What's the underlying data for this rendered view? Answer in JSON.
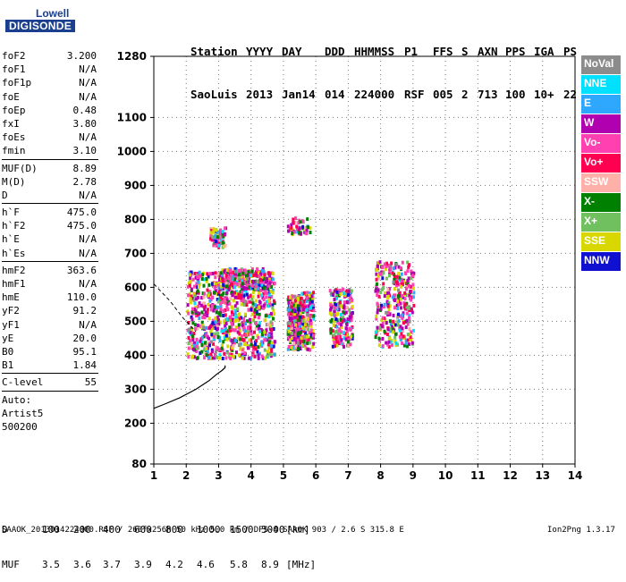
{
  "logo": {
    "line1": "Lowell",
    "line2": "DIGISONDE"
  },
  "header": {
    "row1": [
      "Station",
      "YYYY",
      "DAY",
      "DDD",
      "HHMMSS",
      "P1",
      "FFS",
      "S",
      "AXN",
      "PPS",
      "IGA",
      "PS"
    ],
    "row2": [
      "SaoLuis",
      "2013",
      "Jan14",
      "014",
      "224000",
      "RSF",
      "005",
      "2",
      "713",
      "100",
      "10+",
      "22"
    ]
  },
  "params": {
    "g1": [
      [
        "foF2",
        "3.200"
      ],
      [
        "foF1",
        "N/A"
      ],
      [
        "foF1p",
        "N/A"
      ],
      [
        "foE",
        "N/A"
      ],
      [
        "foEp",
        "0.48"
      ],
      [
        "fxI",
        "3.80"
      ],
      [
        "foEs",
        "N/A"
      ],
      [
        "fmin",
        "3.10"
      ]
    ],
    "g2": [
      [
        "MUF(D)",
        "8.89"
      ],
      [
        "M(D)",
        "2.78"
      ],
      [
        "D",
        "N/A"
      ]
    ],
    "g3": [
      [
        "h`F",
        "475.0"
      ],
      [
        "h`F2",
        "475.0"
      ],
      [
        "h`E",
        "N/A"
      ],
      [
        "h`Es",
        "N/A"
      ]
    ],
    "g4": [
      [
        "hmF2",
        "363.6"
      ],
      [
        "hmF1",
        "N/A"
      ],
      [
        "hmE",
        "110.0"
      ],
      [
        "yF2",
        "91.2"
      ],
      [
        "yF1",
        "N/A"
      ],
      [
        "yE",
        "20.0"
      ],
      [
        "B0",
        "95.1"
      ],
      [
        "B1",
        "1.84"
      ]
    ],
    "g5": [
      [
        "C-level",
        "55"
      ]
    ],
    "auto_label": "Auto:",
    "artist": "Artist5",
    "artist_ver": "500200"
  },
  "legend": [
    {
      "label": "NoVal",
      "color": "#8c8c8c"
    },
    {
      "label": "NNE",
      "color": "#00e0ff"
    },
    {
      "label": "E",
      "color": "#2ea8ff"
    },
    {
      "label": "W",
      "color": "#b000b0"
    },
    {
      "label": "Vo-",
      "color": "#ff40b0"
    },
    {
      "label": "Vo+",
      "color": "#ff0050"
    },
    {
      "label": "SSW",
      "color": "#ffb0a8"
    },
    {
      "label": "X-",
      "color": "#008000"
    },
    {
      "label": "X+",
      "color": "#70c060"
    },
    {
      "label": "SSE",
      "color": "#d8d800"
    },
    {
      "label": "NNW",
      "color": "#1010d0"
    }
  ],
  "chart_data": {
    "type": "scatter",
    "title": "",
    "xlabel": "",
    "ylabel": "",
    "xlim": [
      1,
      14
    ],
    "ylim": [
      80,
      1280
    ],
    "x_ticks": [
      1,
      2,
      3,
      4,
      5,
      6,
      7,
      8,
      9,
      10,
      11,
      12,
      13,
      14
    ],
    "y_ticks": [
      80,
      200,
      300,
      400,
      500,
      600,
      700,
      800,
      900,
      1000,
      1100,
      1280
    ],
    "grid": "dotted",
    "clusters": [
      {
        "f": [
          2.0,
          4.7
        ],
        "h": [
          395,
          650
        ]
      },
      {
        "f": [
          3.0,
          4.4
        ],
        "h": [
          600,
          660
        ]
      },
      {
        "f": [
          2.7,
          3.2
        ],
        "h": [
          720,
          780
        ]
      },
      {
        "f": [
          5.1,
          5.5
        ],
        "h": [
          420,
          580
        ]
      },
      {
        "f": [
          5.4,
          5.9
        ],
        "h": [
          420,
          590
        ]
      },
      {
        "f": [
          6.4,
          7.1
        ],
        "h": [
          430,
          600
        ]
      },
      {
        "f": [
          7.8,
          9.0
        ],
        "h": [
          430,
          680
        ]
      },
      {
        "f": [
          5.1,
          5.8
        ],
        "h": [
          760,
          810
        ]
      }
    ],
    "profile": {
      "f": [
        0.9,
        1.3,
        1.8,
        2.3,
        2.7,
        2.95,
        3.1,
        3.2,
        3.2
      ],
      "h": [
        240,
        255,
        275,
        300,
        325,
        345,
        355,
        363.6,
        370
      ]
    },
    "profile_dashed": {
      "f": [
        1.0,
        1.5,
        1.9,
        2.3
      ],
      "h": [
        610,
        560,
        510,
        470
      ]
    }
  },
  "footer": {
    "d_label": "D",
    "d_values": [
      "100",
      "200",
      "400",
      "600",
      "800",
      "1000",
      "1500",
      "3000",
      "[km]"
    ],
    "muf_label": "MUF",
    "muf_values": [
      "3.5",
      "3.6",
      "3.7",
      "3.9",
      "4.2",
      "4.6",
      "5.8",
      "8.9",
      "[MHz]"
    ],
    "info": "SAAOK_2013014224000.RSF / 260fx256h 50 kHz 5.0 km / DPS-4 SAAOK 903 / 2.6 S 315.8 E",
    "version": "Ion2Png 1.3.17"
  }
}
